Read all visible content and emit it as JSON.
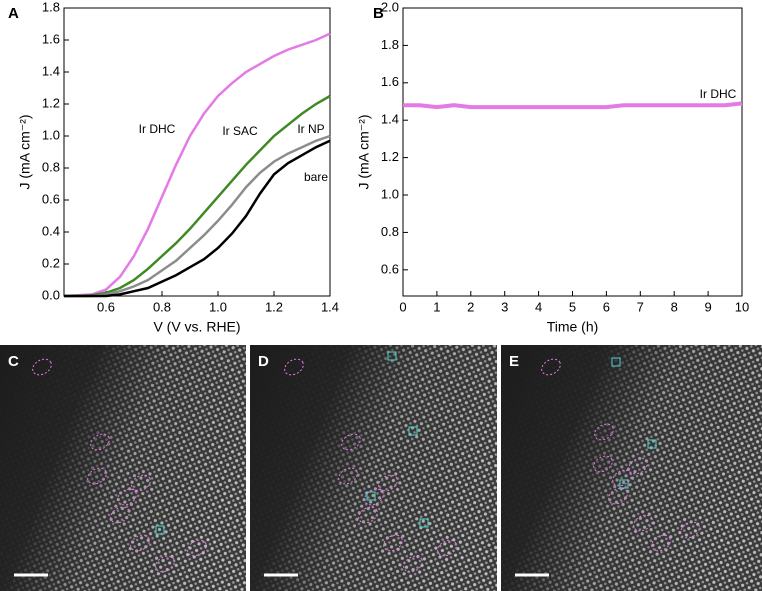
{
  "chart_data": [
    {
      "type": "line",
      "panel_label": "A",
      "x_label": "V (V vs. RHE)",
      "y_label": "J (mA cm⁻²)",
      "x": [
        0.45,
        0.5,
        0.55,
        0.6,
        0.65,
        0.7,
        0.75,
        0.8,
        0.85,
        0.9,
        0.95,
        1.0,
        1.05,
        1.1,
        1.15,
        1.2,
        1.25,
        1.3,
        1.35,
        1.4
      ],
      "series": [
        {
          "name": "Ir DHC",
          "color": "#e47ae6",
          "values": [
            0,
            0.005,
            0.01,
            0.04,
            0.12,
            0.25,
            0.42,
            0.62,
            0.82,
            1.0,
            1.14,
            1.25,
            1.33,
            1.4,
            1.45,
            1.5,
            1.54,
            1.57,
            1.6,
            1.64
          ]
        },
        {
          "name": "Ir SAC",
          "color": "#3f8a24",
          "values": [
            0,
            0,
            0.005,
            0.02,
            0.05,
            0.1,
            0.17,
            0.25,
            0.33,
            0.42,
            0.52,
            0.62,
            0.72,
            0.82,
            0.91,
            1.0,
            1.07,
            1.14,
            1.2,
            1.25
          ]
        },
        {
          "name": "Ir NP",
          "color": "#8c8c8c",
          "values": [
            0,
            0,
            0,
            0.01,
            0.03,
            0.06,
            0.1,
            0.16,
            0.22,
            0.3,
            0.38,
            0.47,
            0.57,
            0.68,
            0.77,
            0.84,
            0.89,
            0.93,
            0.97,
            1.0
          ]
        },
        {
          "name": "bare",
          "color": "#000000",
          "values": [
            0,
            0,
            0,
            0,
            0.01,
            0.03,
            0.05,
            0.09,
            0.13,
            0.18,
            0.23,
            0.3,
            0.39,
            0.5,
            0.64,
            0.76,
            0.83,
            0.88,
            0.93,
            0.97
          ]
        }
      ],
      "xlim": [
        0.45,
        1.4
      ],
      "xticks": [
        0.6,
        0.8,
        {
          "value": 1,
          "label": "1.0"
        },
        1.2,
        1.4
      ],
      "ylim": [
        0,
        1.8
      ],
      "yticks": [
        {
          "value": 0,
          "label": "0.0"
        },
        0.2,
        0.4,
        0.6,
        0.8,
        {
          "value": 1,
          "label": "1.0"
        },
        1.2,
        1.4,
        1.6,
        1.8
      ]
    },
    {
      "type": "line",
      "panel_label": "B",
      "x_label": "Time (h)",
      "y_label": "J (mA cm⁻²)",
      "x": [
        0,
        0.5,
        1,
        1.5,
        2,
        2.5,
        3,
        3.5,
        4,
        4.5,
        5,
        5.5,
        6,
        6.5,
        7,
        7.5,
        8,
        8.5,
        9,
        9.5,
        10
      ],
      "series": [
        {
          "name": "Ir DHC",
          "color": "#e47ae6",
          "values": [
            1.48,
            1.48,
            1.47,
            1.48,
            1.47,
            1.47,
            1.47,
            1.47,
            1.47,
            1.47,
            1.47,
            1.47,
            1.47,
            1.48,
            1.48,
            1.48,
            1.48,
            1.48,
            1.48,
            1.48,
            1.49
          ]
        }
      ],
      "xlim": [
        0,
        10
      ],
      "xticks": [
        0,
        1,
        2,
        3,
        4,
        5,
        6,
        7,
        8,
        9,
        10
      ],
      "ylim": [
        0.46,
        2.0
      ],
      "yticks": [
        0.6,
        0.8,
        {
          "value": 1,
          "label": "1.0"
        },
        1.2,
        1.4,
        1.6,
        1.8,
        {
          "value": 2,
          "label": "2.0"
        }
      ]
    }
  ],
  "image_panels": [
    {
      "label": "C"
    },
    {
      "label": "D"
    },
    {
      "label": "E"
    }
  ]
}
